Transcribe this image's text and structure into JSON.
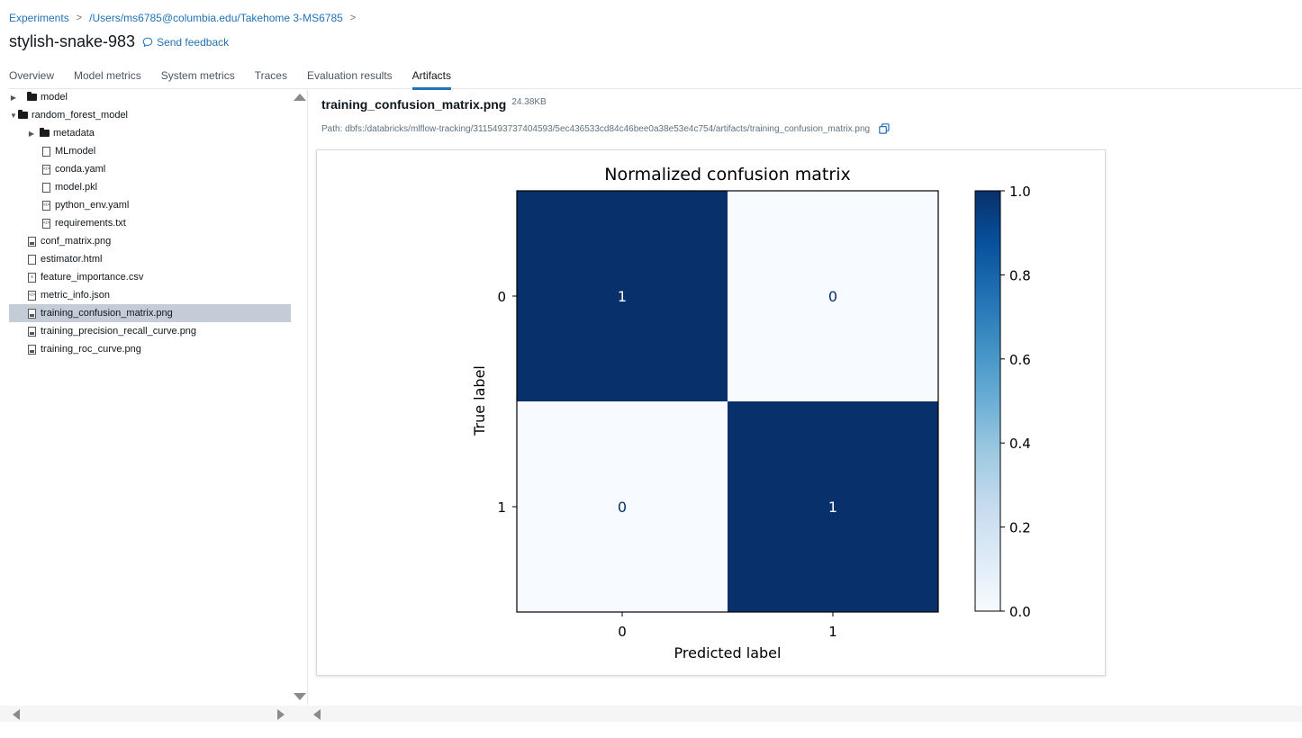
{
  "breadcrumb": {
    "items": [
      "Experiments",
      "/Users/ms6785@columbia.edu/Takehome 3-MS6785"
    ],
    "separator": ">"
  },
  "run": {
    "title": "stylish-snake-983",
    "feedback_label": "Send feedback"
  },
  "tabs": [
    {
      "label": "Overview",
      "active": false
    },
    {
      "label": "Model metrics",
      "active": false
    },
    {
      "label": "System metrics",
      "active": false
    },
    {
      "label": "Traces",
      "active": false
    },
    {
      "label": "Evaluation results",
      "active": false
    },
    {
      "label": "Artifacts",
      "active": true
    }
  ],
  "tree": [
    {
      "label": "model",
      "kind": "folder",
      "depth": 0,
      "expanded": false
    },
    {
      "label": "random_forest_model",
      "kind": "folder",
      "depth": 0,
      "expanded": true
    },
    {
      "label": "metadata",
      "kind": "folder",
      "depth": 1,
      "expanded": false
    },
    {
      "label": "MLmodel",
      "kind": "file",
      "depth": 1
    },
    {
      "label": "conda.yaml",
      "kind": "file",
      "depth": 1
    },
    {
      "label": "model.pkl",
      "kind": "file",
      "depth": 1
    },
    {
      "label": "python_env.yaml",
      "kind": "file",
      "depth": 1
    },
    {
      "label": "requirements.txt",
      "kind": "file",
      "depth": 1
    },
    {
      "label": "conf_matrix.png",
      "kind": "image",
      "depth": 0
    },
    {
      "label": "estimator.html",
      "kind": "file",
      "depth": 0
    },
    {
      "label": "feature_importance.csv",
      "kind": "file",
      "depth": 0
    },
    {
      "label": "metric_info.json",
      "kind": "file",
      "depth": 0
    },
    {
      "label": "training_confusion_matrix.png",
      "kind": "image",
      "depth": 0,
      "selected": true
    },
    {
      "label": "training_precision_recall_curve.png",
      "kind": "image",
      "depth": 0
    },
    {
      "label": "training_roc_curve.png",
      "kind": "image",
      "depth": 0
    }
  ],
  "artifact": {
    "name": "training_confusion_matrix.png",
    "size": "24.38KB",
    "path": "Path: dbfs:/databricks/mlflow-tracking/3115493737404593/5ec436533cd84c46bee0a38e53e4c754/artifacts/training_confusion_matrix.png"
  },
  "chart_data": {
    "type": "heatmap",
    "title": "Normalized confusion matrix",
    "xlabel": "Predicted label",
    "ylabel": "True label",
    "x_categories": [
      "0",
      "1"
    ],
    "y_categories": [
      "0",
      "1"
    ],
    "values": [
      [
        1,
        0
      ],
      [
        0,
        1
      ]
    ],
    "cell_labels": [
      [
        "1",
        "0"
      ],
      [
        "0",
        "1"
      ]
    ],
    "colorbar": {
      "min": 0.0,
      "max": 1.0,
      "ticks": [
        "0.0",
        "0.2",
        "0.4",
        "0.6",
        "0.8",
        "1.0"
      ],
      "colormap": "Blues"
    },
    "colors": {
      "high": "#08306b",
      "low": "#f7fbff",
      "text_on_dark": "#ffffff",
      "text_on_light": "#08306b"
    }
  },
  "colors": {
    "accent": "#2272b4",
    "selected_row": "#c3ccd7"
  }
}
